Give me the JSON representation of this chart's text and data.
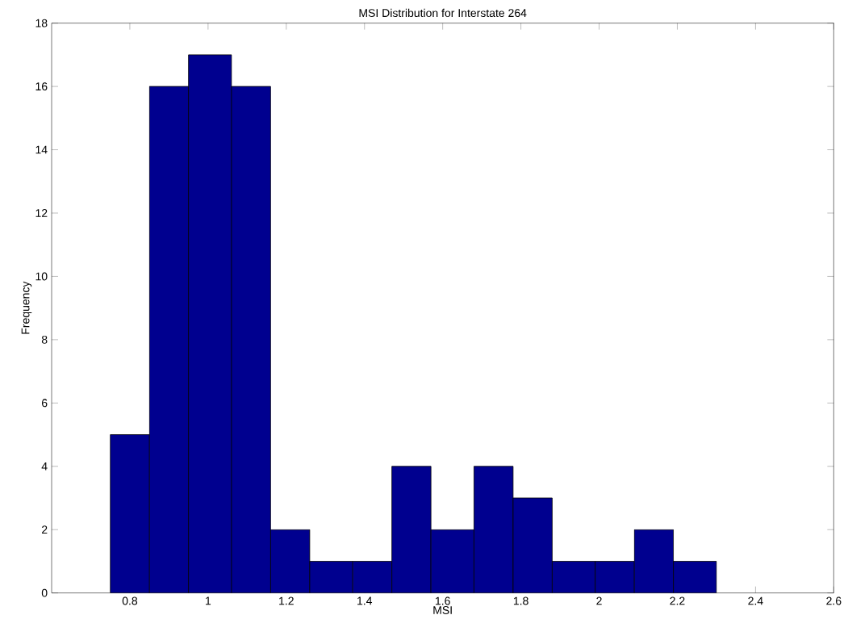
{
  "chart_data": {
    "type": "histogram",
    "title": "MSI Distribution for Interstate 264",
    "xlabel": "MSI",
    "ylabel": "Frequency",
    "bins": [
      0.75,
      0.85,
      0.95,
      1.06,
      1.16,
      1.26,
      1.37,
      1.47,
      1.57,
      1.68,
      1.78,
      1.88,
      1.99,
      2.09,
      2.19,
      2.3
    ],
    "values": [
      5,
      16,
      17,
      16,
      2,
      1,
      1,
      4,
      2,
      4,
      3,
      1,
      1,
      2,
      1
    ],
    "color": "#00008f",
    "xlim": [
      0.6,
      2.6
    ],
    "xticks": [
      0.8,
      1,
      1.2,
      1.4,
      1.6,
      1.8,
      2,
      2.2,
      2.4,
      2.6
    ],
    "ylim": [
      0,
      18
    ],
    "yticks": [
      0,
      2,
      4,
      6,
      8,
      10,
      12,
      14,
      16,
      18
    ],
    "grid": false
  }
}
